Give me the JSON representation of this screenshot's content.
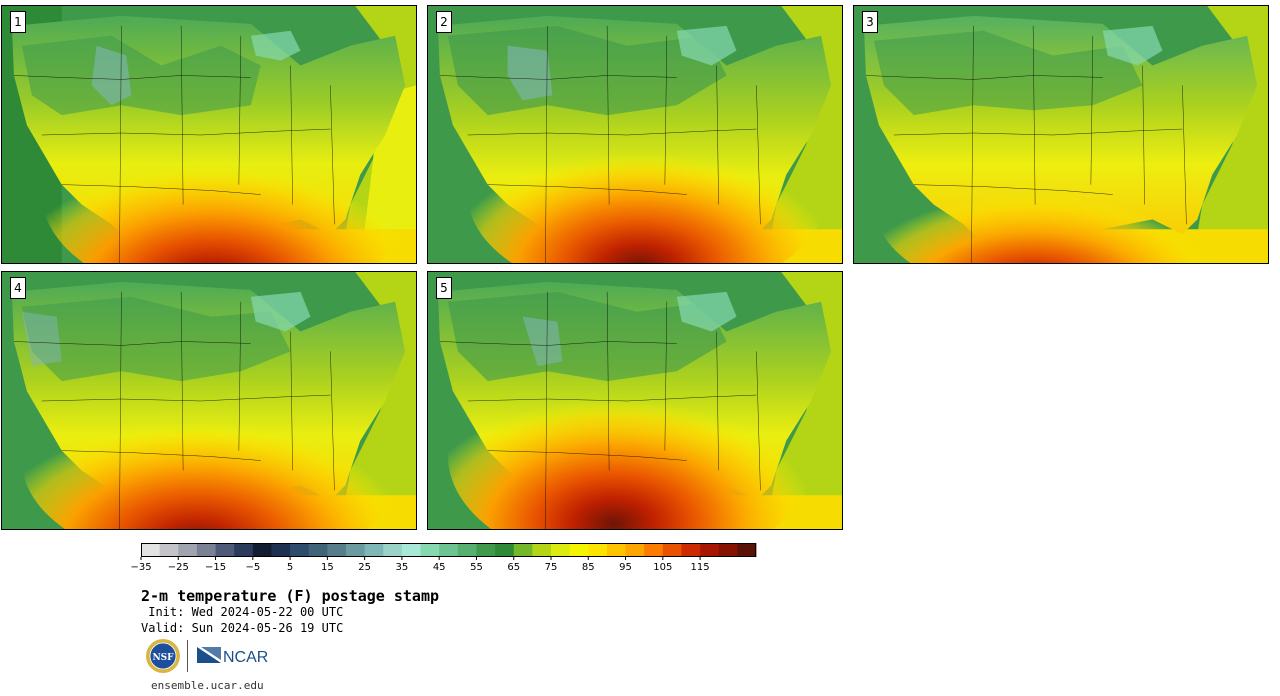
{
  "panels": [
    {
      "number": "1"
    },
    {
      "number": "2"
    },
    {
      "number": "3"
    },
    {
      "number": "4"
    },
    {
      "number": "5"
    }
  ],
  "colorbar": {
    "ticks": [
      "−35",
      "−25",
      "−15",
      "−5",
      "5",
      "15",
      "25",
      "35",
      "45",
      "55",
      "65",
      "75",
      "85",
      "95",
      "105",
      "115"
    ],
    "colors": [
      "#e3e3e3",
      "#c4c4c8",
      "#a0a4ae",
      "#7a8194",
      "#4e5a78",
      "#2c3a5c",
      "#141c32",
      "#1f3150",
      "#2f4c6a",
      "#3f6478",
      "#567e8a",
      "#6a9ba0",
      "#7fb6b6",
      "#9ad2c8",
      "#a8e8d8",
      "#86d8b0",
      "#6cc490",
      "#56b070",
      "#3f9a4c",
      "#2f8a38",
      "#74b82a",
      "#b4d416",
      "#dcea10",
      "#f4f400",
      "#fde400",
      "#fec400",
      "#fda600",
      "#fb7c00",
      "#e85200",
      "#cc2a00",
      "#a81600",
      "#861200",
      "#5a1206"
    ]
  },
  "title": "2-m temperature (F) postage stamp",
  "init": " Init: Wed 2024-05-22 00 UTC",
  "valid": "Valid: Sun 2024-05-26 19 UTC",
  "logos": {
    "nsf": "NSF",
    "ncar": "NCAR"
  },
  "website": "ensemble.ucar.edu"
}
